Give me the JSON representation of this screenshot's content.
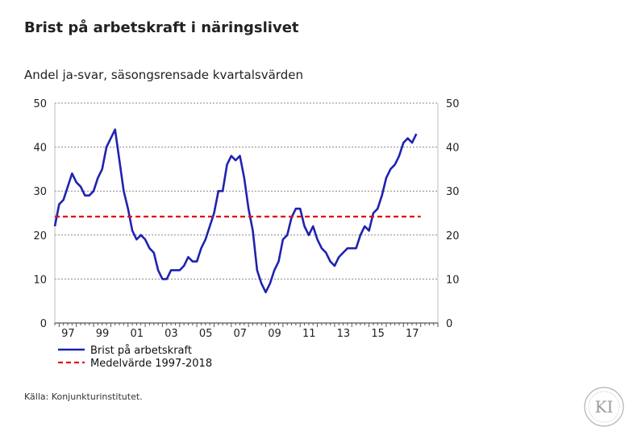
{
  "title": "Brist på arbetskraft i näringslivet",
  "subtitle": "Andel ja-svar, säsongsrensade kvartalsvärden",
  "source": "Källa: Konjunkturinstitutet.",
  "logo_text": "KI",
  "colors": {
    "series": "#1f22b0",
    "mean": "#e01010",
    "grid": "#888888"
  },
  "chart_data": {
    "type": "line",
    "title": "Brist på arbetskraft i näringslivet",
    "subtitle": "Andel ja-svar, säsongsrensade kvartalsvärden",
    "ylim": [
      0,
      50
    ],
    "xlim": [
      1996.75,
      2019.0
    ],
    "yticks": [
      0,
      10,
      20,
      30,
      40,
      50
    ],
    "ytick_labels": [
      "0",
      "10",
      "20",
      "30",
      "40",
      "50"
    ],
    "xticks": [
      1997.0,
      1999.0,
      2001.0,
      2003.0,
      2005.0,
      2007.0,
      2009.0,
      2011.0,
      2013.0,
      2015.0,
      2017.0
    ],
    "xtick_labels": [
      "97",
      "99",
      "01",
      "03",
      "05",
      "07",
      "09",
      "11",
      "13",
      "15",
      "17"
    ],
    "grid": true,
    "legend_placement": "bottom-left",
    "series": [
      {
        "name": "Brist på arbetskraft",
        "style": "solid",
        "x": [
          1996.75,
          1997.0,
          1997.25,
          1997.5,
          1997.75,
          1998.0,
          1998.25,
          1998.5,
          1998.75,
          1999.0,
          1999.25,
          1999.5,
          1999.75,
          2000.0,
          2000.25,
          2000.5,
          2000.75,
          2001.0,
          2001.25,
          2001.5,
          2001.75,
          2002.0,
          2002.25,
          2002.5,
          2002.75,
          2003.0,
          2003.25,
          2003.5,
          2003.75,
          2004.0,
          2004.25,
          2004.5,
          2004.75,
          2005.0,
          2005.25,
          2005.5,
          2005.75,
          2006.0,
          2006.25,
          2006.5,
          2006.75,
          2007.0,
          2007.25,
          2007.5,
          2007.75,
          2008.0,
          2008.25,
          2008.5,
          2008.75,
          2009.0,
          2009.25,
          2009.5,
          2009.75,
          2010.0,
          2010.25,
          2010.5,
          2010.75,
          2011.0,
          2011.25,
          2011.5,
          2011.75,
          2012.0,
          2012.25,
          2012.5,
          2012.75,
          2013.0,
          2013.25,
          2013.5,
          2013.75,
          2014.0,
          2014.25,
          2014.5,
          2014.75,
          2015.0,
          2015.25,
          2015.5,
          2015.75,
          2016.0,
          2016.25,
          2016.5,
          2016.75,
          2017.0,
          2017.25,
          2017.5,
          2017.75
        ],
        "values": [
          22,
          27,
          28,
          31,
          34,
          32,
          31,
          29,
          29,
          30,
          33,
          35,
          40,
          42,
          44,
          37,
          30,
          26,
          21,
          19,
          20,
          19,
          17,
          16,
          12,
          10,
          10,
          12,
          12,
          12,
          13,
          15,
          14,
          14,
          17,
          19,
          22,
          25,
          30,
          30,
          36,
          38,
          37,
          38,
          33,
          26,
          21,
          12,
          9,
          7,
          9,
          12,
          14,
          19,
          20,
          24,
          26,
          26,
          22,
          20,
          22,
          19,
          17,
          16,
          14,
          13,
          15,
          16,
          17,
          17,
          17,
          20,
          22,
          21,
          25,
          26,
          29,
          33,
          35,
          36,
          38,
          41,
          42,
          41,
          43
        ]
      },
      {
        "name": "Medelvärde 1997-2018",
        "style": "dashed",
        "x": [
          1996.75,
          2018.0
        ],
        "values": [
          24.2,
          24.2
        ]
      }
    ]
  }
}
